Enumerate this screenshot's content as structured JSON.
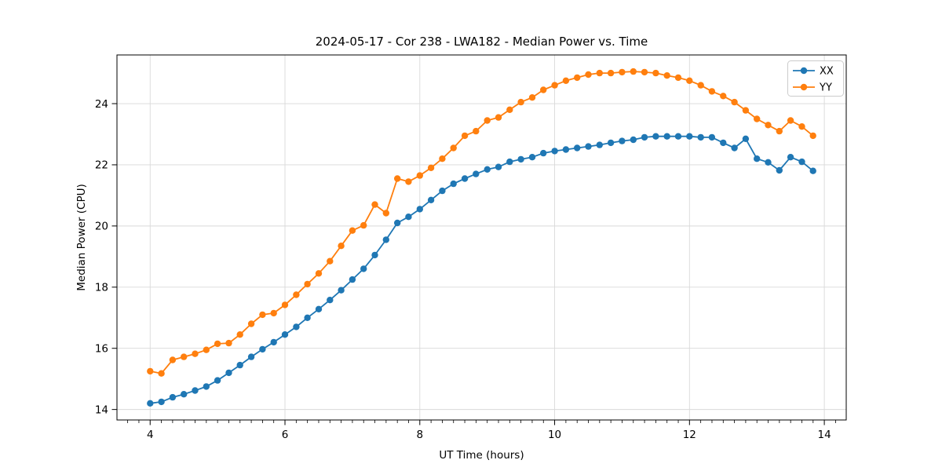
{
  "figure": {
    "title": "2024-05-17 - Cor 238 - LWA182 - Median Power vs. Time"
  },
  "chart_data": {
    "type": "line",
    "title": "2024-05-17 - Cor 238 - LWA182 - Median Power vs. Time",
    "xlabel": "UT Time (hours)",
    "ylabel": "Median Power (CPU)",
    "xlim": [
      3.508,
      14.325
    ],
    "ylim": [
      13.657,
      25.592
    ],
    "x_ticks": [
      4,
      6,
      8,
      10,
      12,
      14
    ],
    "y_ticks": [
      14,
      16,
      18,
      20,
      22,
      24
    ],
    "x_minor_tick_step": 0.16667,
    "grid": true,
    "grid_color": "#d9d9d9",
    "legend_position": "upper right",
    "marker": "o",
    "x": [
      4.0,
      4.167,
      4.333,
      4.5,
      4.667,
      4.833,
      5.0,
      5.167,
      5.333,
      5.5,
      5.667,
      5.833,
      6.0,
      6.167,
      6.333,
      6.5,
      6.667,
      6.833,
      7.0,
      7.167,
      7.333,
      7.5,
      7.667,
      7.833,
      8.0,
      8.167,
      8.333,
      8.5,
      8.667,
      8.833,
      9.0,
      9.167,
      9.333,
      9.5,
      9.667,
      9.833,
      10.0,
      10.167,
      10.333,
      10.5,
      10.667,
      10.833,
      11.0,
      11.167,
      11.333,
      11.5,
      11.667,
      11.833,
      12.0,
      12.167,
      12.333,
      12.5,
      12.667,
      12.833,
      13.0,
      13.167,
      13.333,
      13.5,
      13.667,
      13.833
    ],
    "series": [
      {
        "name": "XX",
        "color": "#1f77b4",
        "values": [
          14.2,
          14.25,
          14.4,
          14.5,
          14.62,
          14.75,
          14.95,
          15.2,
          15.45,
          15.72,
          15.97,
          16.2,
          16.45,
          16.7,
          17.0,
          17.28,
          17.58,
          17.9,
          18.25,
          18.6,
          19.05,
          19.55,
          20.1,
          20.3,
          20.55,
          20.85,
          21.15,
          21.38,
          21.55,
          21.7,
          21.85,
          21.93,
          22.1,
          22.18,
          22.25,
          22.38,
          22.45,
          22.5,
          22.55,
          22.6,
          22.65,
          22.72,
          22.78,
          22.82,
          22.9,
          22.93,
          22.93,
          22.93,
          22.93,
          22.9,
          22.9,
          22.72,
          22.55,
          22.85,
          22.2,
          22.08,
          21.82,
          22.25,
          22.1,
          21.8
        ]
      },
      {
        "name": "YY",
        "color": "#ff7f0e",
        "values": [
          15.25,
          15.18,
          15.62,
          15.72,
          15.82,
          15.95,
          16.15,
          16.17,
          16.45,
          16.8,
          17.1,
          17.15,
          17.42,
          17.75,
          18.1,
          18.45,
          18.85,
          19.35,
          19.85,
          20.02,
          20.7,
          20.42,
          21.55,
          21.45,
          21.65,
          21.9,
          22.2,
          22.55,
          22.95,
          23.1,
          23.45,
          23.55,
          23.8,
          24.05,
          24.2,
          24.45,
          24.6,
          24.75,
          24.85,
          24.95,
          25.0,
          25.0,
          25.03,
          25.05,
          25.03,
          25.0,
          24.92,
          24.85,
          24.75,
          24.6,
          24.4,
          24.25,
          24.05,
          23.78,
          23.5,
          23.3,
          23.1,
          23.45,
          23.25,
          22.95
        ]
      }
    ]
  }
}
